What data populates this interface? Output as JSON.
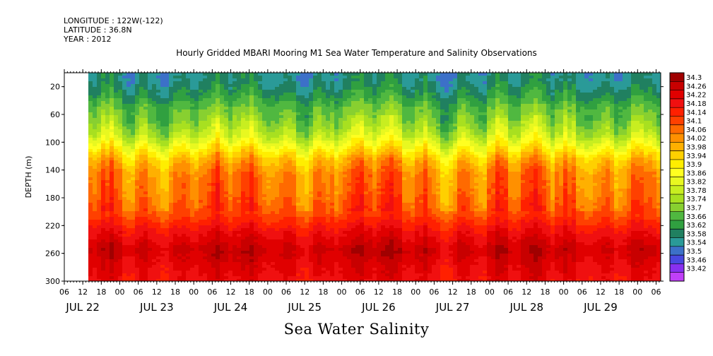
{
  "header": {
    "longitude": "LONGITUDE : 122W(-122)",
    "latitude": "LATITUDE : 36.8N",
    "year": "YEAR : 2012"
  },
  "chart_data": {
    "type": "heatmap",
    "title": "Hourly Gridded MBARI Mooring M1 Sea Water Temperature and Salinity Observations",
    "variable_title": "Sea Water Salinity",
    "ylabel": "DEPTH (m)",
    "xlabel": "",
    "y_inverted": true,
    "ylim": [
      0,
      300
    ],
    "y_ticks": [
      20,
      60,
      100,
      140,
      180,
      220,
      260,
      300
    ],
    "x_hour_ticks": [
      "06",
      "12",
      "18",
      "00",
      "06",
      "12",
      "18",
      "00",
      "06",
      "12",
      "18",
      "00",
      "06",
      "12",
      "18",
      "00",
      "06",
      "12",
      "18",
      "00",
      "06",
      "12",
      "18",
      "00",
      "06",
      "12",
      "18",
      "00",
      "06",
      "12",
      "18",
      "00",
      "06"
    ],
    "x_day_labels": [
      "JUL 22",
      "JUL 23",
      "JUL 24",
      "JUL 25",
      "JUL 26",
      "JUL 27",
      "JUL 28",
      "JUL 29"
    ],
    "data_start": "JUL 22 14:00",
    "colorbar_labels": [
      "34.3",
      "34.26",
      "34.22",
      "34.18",
      "34.14",
      "34.1",
      "34.06",
      "34.02",
      "33.98",
      "33.94",
      "33.9",
      "33.86",
      "33.82",
      "33.78",
      "33.74",
      "33.7",
      "33.66",
      "33.62",
      "33.58",
      "33.54",
      "33.5",
      "33.46",
      "33.42"
    ],
    "colorbar_colors": [
      "#a00000",
      "#c80000",
      "#e00000",
      "#f01010",
      "#ff2000",
      "#ff4000",
      "#ff6a00",
      "#ff9000",
      "#ffb000",
      "#ffd000",
      "#ffee00",
      "#ffff20",
      "#e8f820",
      "#c8ee20",
      "#a8e020",
      "#88d030",
      "#50b840",
      "#30a040",
      "#208060",
      "#2a9a98",
      "#3c70c8",
      "#4848e0",
      "#8830f0",
      "#c040f8"
    ],
    "depth_profile": [
      {
        "depth": 10,
        "salinity": 33.6
      },
      {
        "depth": 30,
        "salinity": 33.64
      },
      {
        "depth": 50,
        "salinity": 33.7
      },
      {
        "depth": 70,
        "salinity": 33.74
      },
      {
        "depth": 90,
        "salinity": 33.8
      },
      {
        "depth": 110,
        "salinity": 33.9
      },
      {
        "depth": 125,
        "salinity": 33.98
      },
      {
        "depth": 145,
        "salinity": 34.04
      },
      {
        "depth": 175,
        "salinity": 34.06
      },
      {
        "depth": 205,
        "salinity": 34.1
      },
      {
        "depth": 230,
        "salinity": 34.18
      },
      {
        "depth": 255,
        "salinity": 34.24
      },
      {
        "depth": 280,
        "salinity": 34.2
      },
      {
        "depth": 300,
        "salinity": 34.18
      }
    ]
  }
}
